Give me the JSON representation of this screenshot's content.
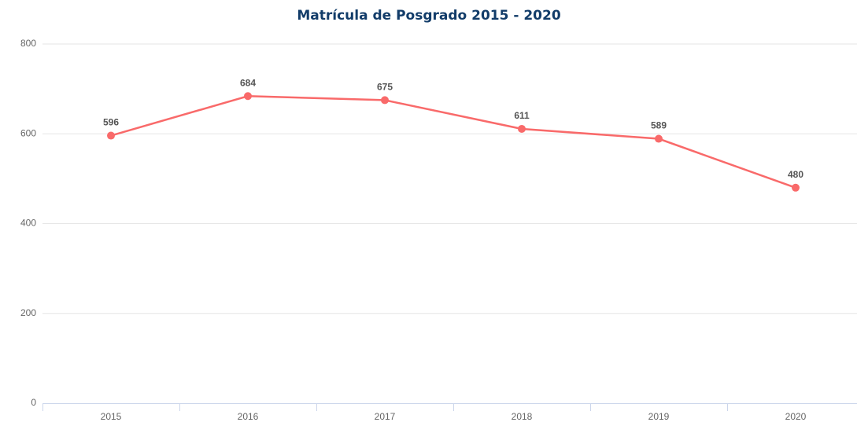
{
  "chart_data": {
    "type": "line",
    "title": "Matrícula de Posgrado 2015 - 2020",
    "categories": [
      "2015",
      "2016",
      "2017",
      "2018",
      "2019",
      "2020"
    ],
    "values": [
      596,
      684,
      675,
      611,
      589,
      480
    ],
    "color": "#f96a6a",
    "ylim": [
      0,
      800
    ],
    "yticks": [
      0,
      200,
      400,
      600,
      800
    ],
    "grid": true,
    "data_labels": true
  }
}
